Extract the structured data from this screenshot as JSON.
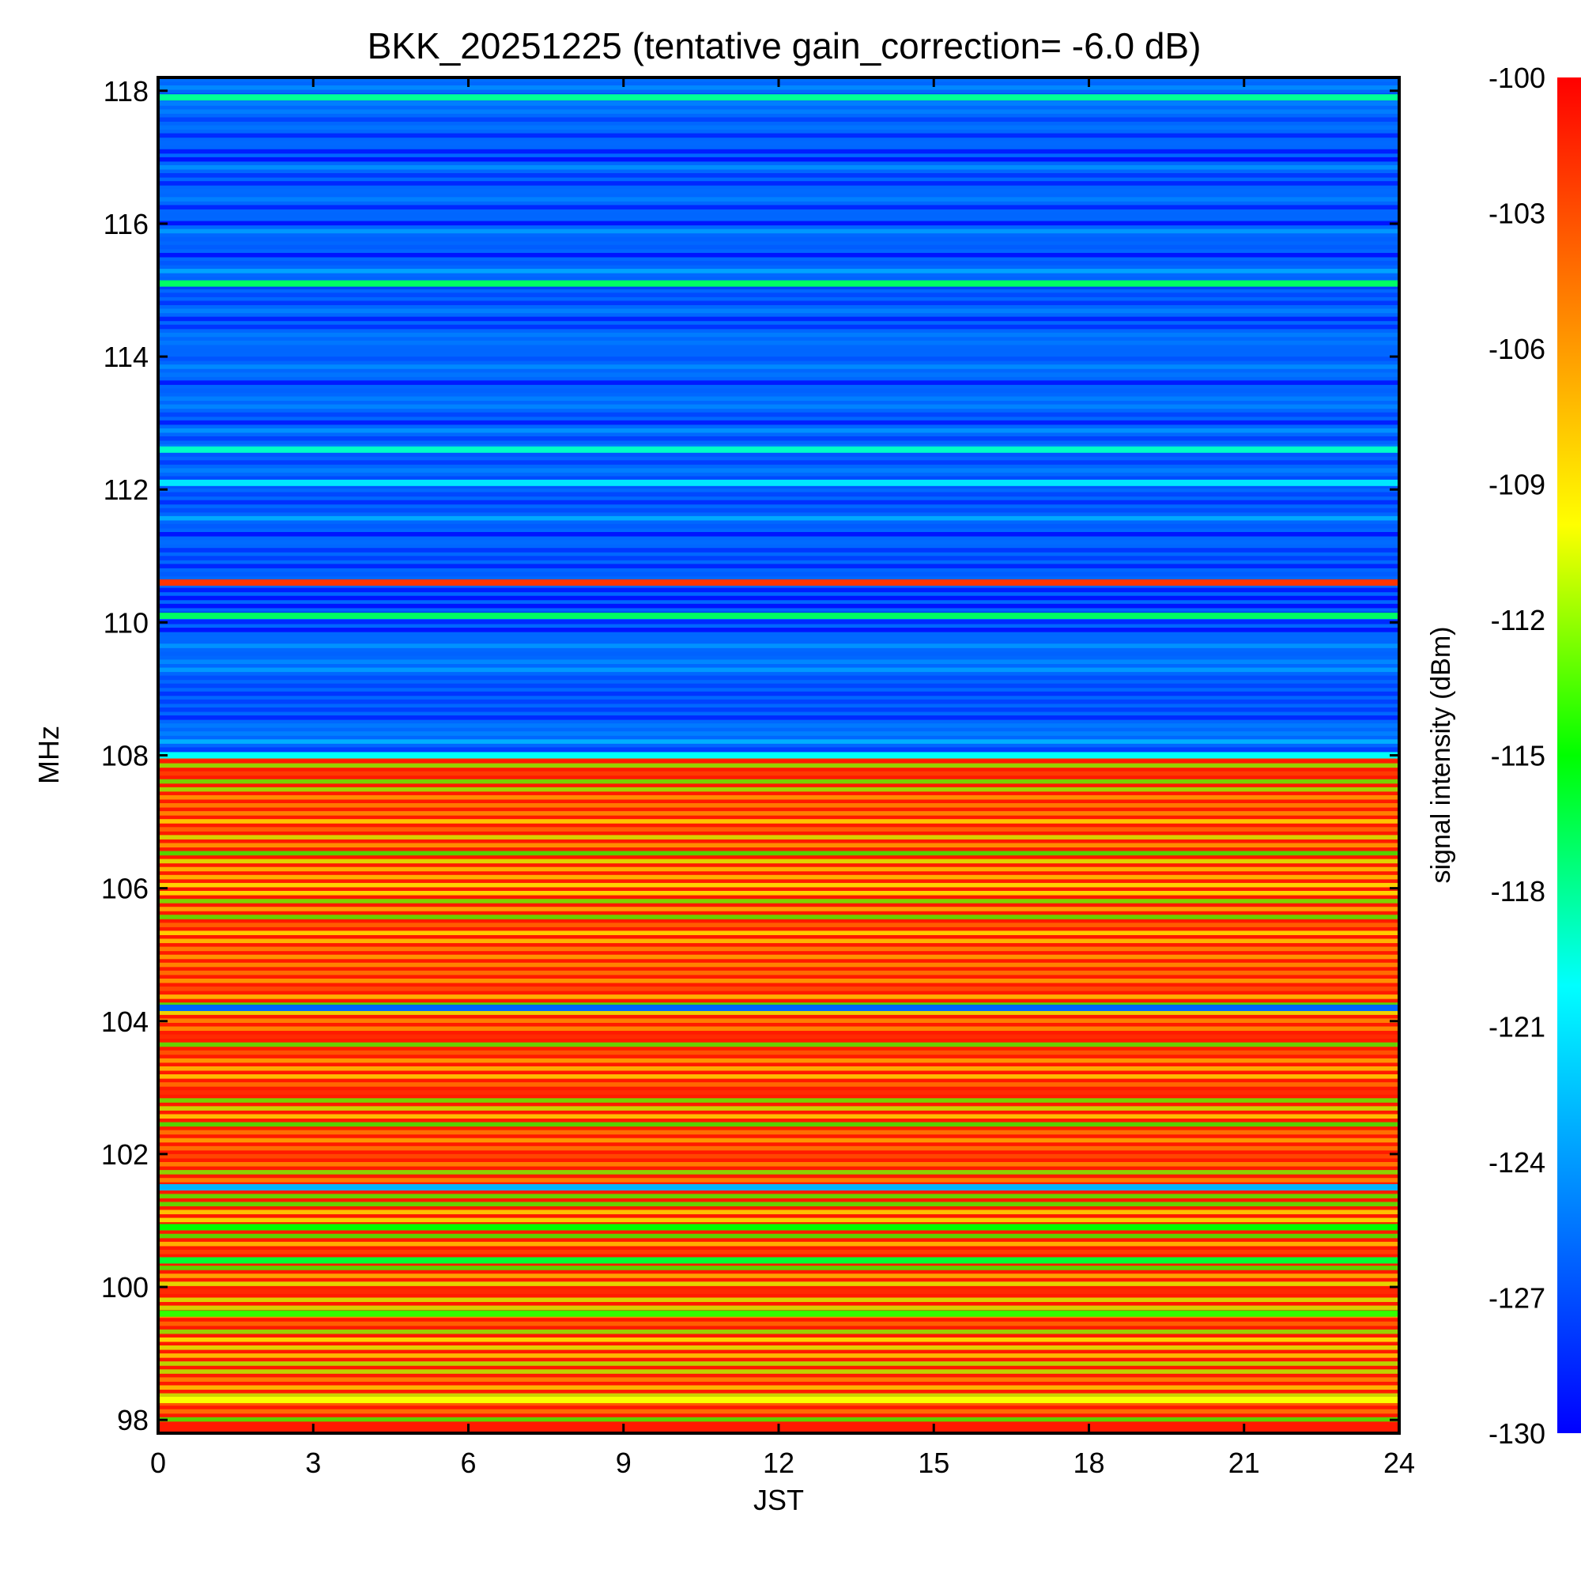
{
  "chart_data": {
    "type": "heatmap",
    "title": "BKK_20251225 (tentative gain_correction= -6.0 dB)",
    "xlabel": "JST",
    "ylabel": "MHz",
    "colorbar_label": "signal intensity (dBm)",
    "xlim": [
      0,
      24
    ],
    "ylim": [
      97.8,
      118.2
    ],
    "x_ticks": [
      "0",
      "3",
      "6",
      "9",
      "12",
      "15",
      "18",
      "21",
      "24"
    ],
    "y_ticks": [
      "98",
      "100",
      "102",
      "104",
      "106",
      "108",
      "110",
      "112",
      "114",
      "116",
      "118"
    ],
    "colorbar_ticks": [
      "-100",
      "-103",
      "-106",
      "-109",
      "-112",
      "-115",
      "-118",
      "-121",
      "-124",
      "-127",
      "-130"
    ],
    "zlim": [
      -130,
      -100
    ],
    "colormap": "jet",
    "regions": [
      {
        "freq": [
          108.0,
          118.2
        ],
        "typical_dBm": -126
      },
      {
        "freq": [
          97.8,
          108.0
        ],
        "typical_dBm": -101
      }
    ],
    "bands": [
      {
        "freq": 117.9,
        "dBm": -118
      },
      {
        "freq": 115.1,
        "dBm": -117
      },
      {
        "freq": 112.6,
        "dBm": -119
      },
      {
        "freq": 112.1,
        "dBm": -121
      },
      {
        "freq": 110.6,
        "dBm": -102
      },
      {
        "freq": 110.1,
        "dBm": -117
      },
      {
        "freq": 108.0,
        "dBm": -120
      },
      {
        "freq": 104.2,
        "dBm": -126
      },
      {
        "freq": 101.5,
        "dBm": -123
      },
      {
        "freq": 100.9,
        "dBm": -115
      },
      {
        "freq": 100.4,
        "dBm": -116
      },
      {
        "freq": 99.6,
        "dBm": -114
      },
      {
        "freq": 98.3,
        "dBm": -110
      }
    ]
  }
}
